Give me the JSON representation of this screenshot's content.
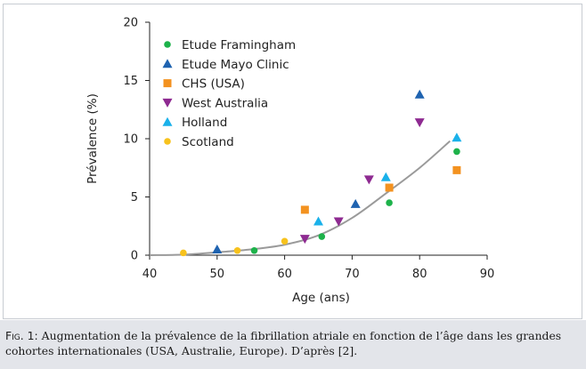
{
  "chart_data": {
    "type": "scatter",
    "xlabel": "Age (ans)",
    "ylabel": "Prévalence (%)",
    "xlim": [
      40,
      90
    ],
    "ylim": [
      0,
      20
    ],
    "xticks": [
      "40",
      "50",
      "60",
      "70",
      "80",
      "90"
    ],
    "yticks": [
      "0",
      "5",
      "10",
      "15",
      "20"
    ],
    "grid": false,
    "legend_position": "top-left",
    "series": [
      {
        "name": "Etude Framingham",
        "marker": "circle",
        "color": "#1db24a",
        "points": [
          [
            55.5,
            0.4
          ],
          [
            65.5,
            1.6
          ],
          [
            75.5,
            4.5
          ],
          [
            85.5,
            8.9
          ]
        ]
      },
      {
        "name": "Etude Mayo Clinic",
        "marker": "triangle-up",
        "color": "#1f63b0",
        "points": [
          [
            50,
            0.5
          ],
          [
            70.5,
            4.4
          ],
          [
            80,
            13.8
          ]
        ]
      },
      {
        "name": "CHS (USA)",
        "marker": "square",
        "color": "#f39220",
        "points": [
          [
            63,
            3.9
          ],
          [
            75.5,
            5.8
          ],
          [
            85.5,
            7.3
          ]
        ]
      },
      {
        "name": "West Australia",
        "marker": "triangle-down",
        "color": "#8e2a91",
        "points": [
          [
            63,
            1.4
          ],
          [
            68,
            2.9
          ],
          [
            72.5,
            6.5
          ],
          [
            80,
            11.4
          ]
        ]
      },
      {
        "name": "Holland",
        "marker": "triangle-up",
        "color": "#1ab1ea",
        "points": [
          [
            65,
            2.9
          ],
          [
            75,
            6.7
          ],
          [
            85.5,
            10.1
          ]
        ]
      },
      {
        "name": "Scotland",
        "marker": "circle",
        "color": "#f7c21d",
        "points": [
          [
            45,
            0.2
          ],
          [
            53,
            0.4
          ],
          [
            60,
            1.2
          ]
        ]
      }
    ],
    "trendline": {
      "color": "#9a9a9a",
      "points": [
        [
          40,
          0
        ],
        [
          45,
          0.05
        ],
        [
          50,
          0.25
        ],
        [
          55,
          0.5
        ],
        [
          60,
          0.9
        ],
        [
          65,
          1.7
        ],
        [
          70,
          3.2
        ],
        [
          75,
          5.3
        ],
        [
          80,
          7.5
        ],
        [
          84.5,
          9.8
        ]
      ]
    }
  },
  "caption": {
    "label": "Fig. 1:",
    "text": "Augmentation de la prévalence de la fibrillation atriale en fonction de l’âge dans les grandes cohortes internationales (USA, Australie, Europe). D’après [2]."
  }
}
